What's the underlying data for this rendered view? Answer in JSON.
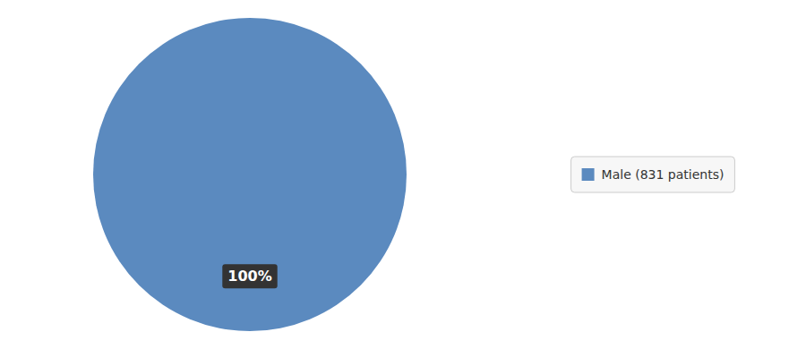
{
  "chart_data": {
    "type": "pie",
    "categories": [
      "Male (831 patients)"
    ],
    "values": [
      100
    ],
    "value_labels": [
      "100%"
    ],
    "colors": [
      "#5b8abf"
    ],
    "data_labels": true,
    "legend": "right"
  }
}
